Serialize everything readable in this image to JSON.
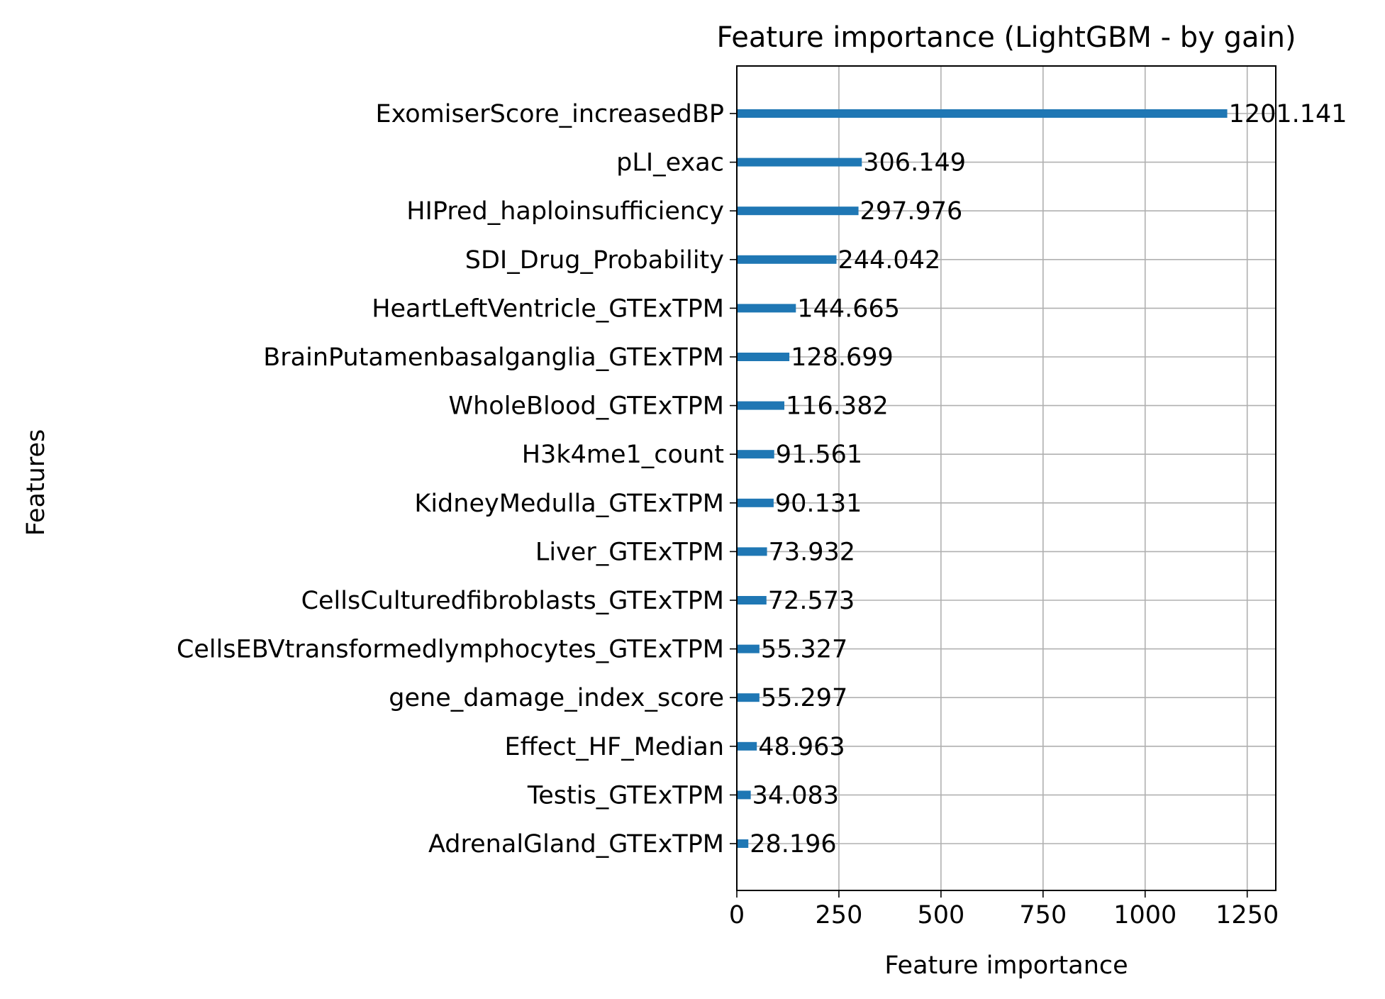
{
  "chart_data": {
    "type": "bar",
    "orientation": "horizontal",
    "title": "Feature importance (LightGBM - by gain)",
    "xlabel": "Feature importance",
    "ylabel": "Features",
    "xlim": [
      0,
      1320
    ],
    "xticks": [
      0,
      250,
      500,
      750,
      1000,
      1250
    ],
    "xtick_labels": [
      "0",
      "250",
      "500",
      "750",
      "1000",
      "1250"
    ],
    "grid": true,
    "bar_color": "#1f77b4",
    "categories": [
      "ExomiserScore_increasedBP",
      "pLI_exac",
      "HIPred_haploinsufficiency",
      "SDI_Drug_Probability",
      "HeartLeftVentricle_GTExTPM",
      "BrainPutamenbasalganglia_GTExTPM",
      "WholeBlood_GTExTPM",
      "H3k4me1_count",
      "KidneyMedulla_GTExTPM",
      "Liver_GTExTPM",
      "CellsCulturedfibroblasts_GTExTPM",
      "CellsEBVtransformedlymphocytes_GTExTPM",
      "gene_damage_index_score",
      "Effect_HF_Median",
      "Testis_GTExTPM",
      "AdrenalGland_GTExTPM"
    ],
    "values": [
      1201.141,
      306.149,
      297.976,
      244.042,
      144.665,
      128.699,
      116.382,
      91.561,
      90.131,
      73.932,
      72.573,
      55.327,
      55.297,
      48.963,
      34.083,
      28.196
    ],
    "value_labels": [
      "1201.141",
      "306.149",
      "297.976",
      "244.042",
      "144.665",
      "128.699",
      "116.382",
      "91.561",
      "90.131",
      "73.932",
      "72.573",
      "55.327",
      "55.297",
      "48.963",
      "34.083",
      "28.196"
    ]
  }
}
